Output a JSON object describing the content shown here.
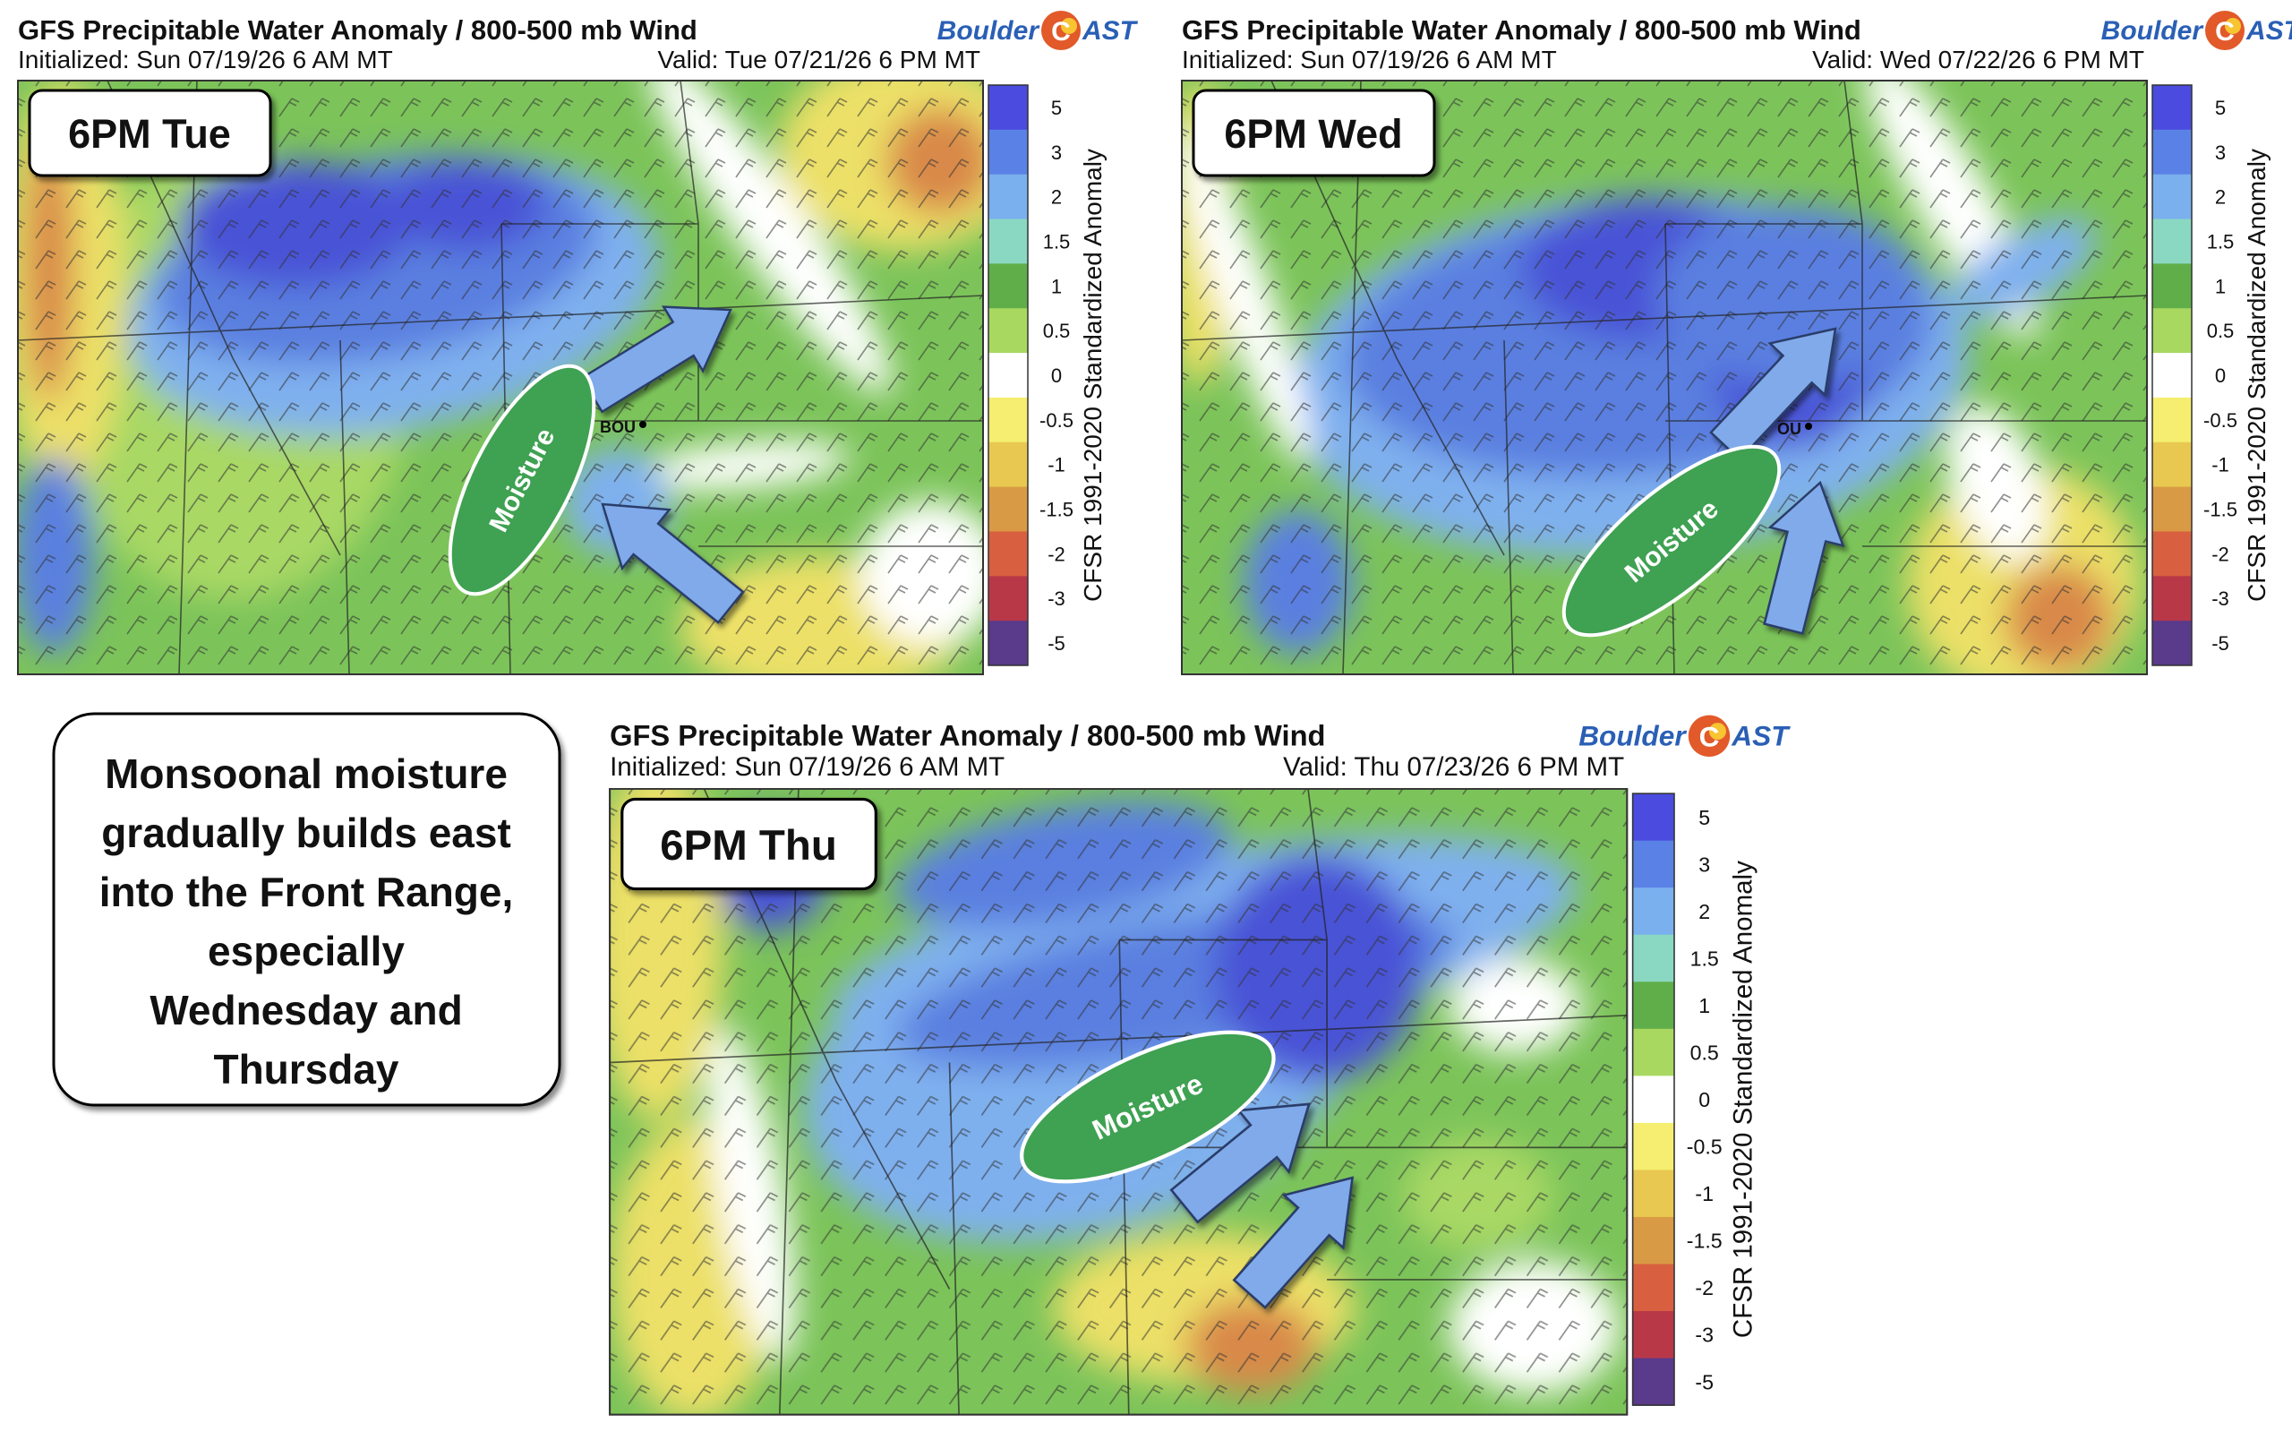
{
  "panels": [
    {
      "title": "GFS Precipitable Water Anomaly / 800-500 mb Wind",
      "initialized": "Initialized: Sun 07/19/26 6 AM MT",
      "valid": "Valid: Tue 07/21/26 6 PM MT",
      "day_label": "6PM Tue",
      "moisture_label": "Moisture",
      "station": "BOU"
    },
    {
      "title": "GFS Precipitable Water Anomaly / 800-500 mb Wind",
      "initialized": "Initialized: Sun 07/19/26 6 AM MT",
      "valid": "Valid: Wed 07/22/26 6 PM MT",
      "day_label": "6PM Wed",
      "moisture_label": "Moisture",
      "station": "OU"
    },
    {
      "title": "GFS Precipitable Water Anomaly / 800-500 mb Wind",
      "initialized": "Initialized: Sun 07/19/26 6 AM MT",
      "valid": "Valid: Thu 07/23/26 6 PM MT",
      "day_label": "6PM Thu",
      "moisture_label": "Moisture"
    }
  ],
  "logo": {
    "left": "Boulder",
    "mark": "C",
    "right": "AST"
  },
  "colorbar": {
    "label": "CFSR 1991-2020 Standardized Anomaly",
    "ticks": [
      5,
      3,
      2,
      1.5,
      1,
      0.5,
      0,
      -0.5,
      -1,
      -1.5,
      -2,
      -3,
      -5
    ],
    "colors": [
      "#4b4be0",
      "#5a82e6",
      "#7ab0ee",
      "#8ad8c2",
      "#5fae4a",
      "#a8d860",
      "#ffffff",
      "#f5ee70",
      "#e8c850",
      "#d99a45",
      "#d86040",
      "#b83848",
      "#5a3a8a"
    ]
  },
  "caption": [
    "Monsoonal moisture",
    "gradually builds east",
    "into the Front Range,",
    "especially",
    "Wednesday and",
    "Thursday"
  ]
}
